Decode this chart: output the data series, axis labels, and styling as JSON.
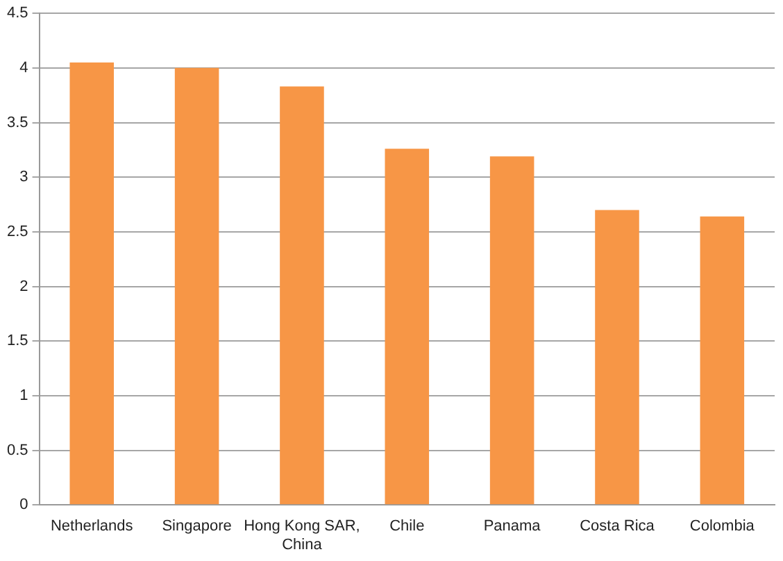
{
  "chart_data": {
    "type": "bar",
    "categories": [
      "Netherlands",
      "Singapore",
      "Hong Kong SAR, China",
      "Chile",
      "Panama",
      "Costa Rica",
      "Colombia"
    ],
    "values": [
      4.05,
      4.0,
      3.83,
      3.26,
      3.19,
      2.7,
      2.64
    ],
    "color": "#f79646",
    "ylim": [
      0,
      4.5
    ],
    "yticks": [
      0,
      0.5,
      1,
      1.5,
      2,
      2.5,
      3,
      3.5,
      4,
      4.5
    ],
    "grid": "y",
    "legend": false
  }
}
